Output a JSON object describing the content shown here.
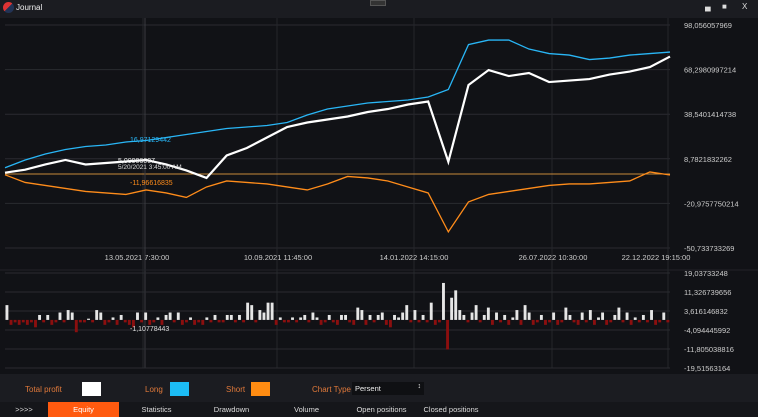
{
  "window": {
    "title": "Journal",
    "minimize": "▄",
    "maximize": "■",
    "close": "X"
  },
  "chart_data": [
    {
      "type": "line",
      "ylim": [
        -50.733733269,
        98.056057969
      ],
      "y_ticks": [
        "98,056057969",
        "68,2980997214",
        "38,5401414738",
        "8,7821832262",
        "-20,9757750214",
        "-50,733733269"
      ],
      "x_ticks": [
        "13.05.2021 7:30:00",
        "10.09.2021 11:45:00",
        "14.01.2022 14:15:00",
        "26.07.2022 10:30:00",
        "22.12.2022 19:15:00"
      ],
      "series": [
        {
          "name": "Total profit",
          "color": "#ffffff",
          "values": [
            -0.5,
            1.5,
            5,
            8,
            5,
            6,
            7,
            8,
            5,
            1,
            -4,
            11,
            16,
            23,
            30,
            33,
            35,
            37,
            40,
            42,
            45,
            47,
            6.8,
            58,
            68,
            64,
            66,
            60,
            61,
            62,
            65,
            67,
            70,
            77
          ]
        },
        {
          "name": "Long",
          "color": "#29b6f6",
          "values": [
            2.8,
            8,
            12,
            15,
            17,
            18,
            20,
            21,
            23,
            25,
            27,
            29,
            30,
            31,
            33,
            38,
            42,
            44,
            46,
            47,
            48,
            50,
            55,
            85,
            88,
            88,
            82,
            79,
            78,
            75,
            76,
            78,
            79,
            80
          ]
        },
        {
          "name": "Short",
          "color": "#ff8c1a",
          "values": [
            -1.9,
            -7,
            -9,
            -11,
            -13,
            -14,
            -15,
            -12,
            -14,
            -17,
            -10,
            -6,
            -7,
            -8,
            -10,
            -12,
            -8,
            -3,
            -4,
            -6,
            -10,
            -14,
            -40,
            -20,
            -15,
            -13,
            -11,
            -9,
            -8,
            -8,
            -7,
            -6,
            0,
            -2
          ]
        }
      ],
      "crosshair": {
        "long": "16,97129442",
        "total": "5,00906607",
        "date": "5/20/2021 3:45:00 AM",
        "short": "-11,96616835"
      }
    },
    {
      "type": "bar",
      "ylim": [
        -19.51563164,
        19.03733248
      ],
      "y_ticks": [
        "19,03733248",
        "11,326739656",
        "3,616146832",
        "-4,094445992",
        "-11,805038816",
        "-19,51563164"
      ],
      "crosshair_value": "-1,10778443",
      "values": [
        6,
        -2,
        -1,
        -2,
        -1,
        -2,
        -1,
        -3,
        2,
        -1,
        2,
        -2,
        -1,
        3,
        -1,
        4,
        3,
        -5,
        -1,
        -1,
        0.5,
        -1,
        4,
        3,
        -2,
        -1,
        1,
        -2,
        2,
        -1,
        -2,
        -3,
        3,
        -1,
        3,
        -2,
        -1,
        1,
        -2,
        2,
        3,
        -1,
        3,
        -2,
        -1,
        1,
        -2,
        -1,
        -2,
        1,
        -1,
        2,
        -1,
        -1,
        2,
        2,
        -1,
        2,
        -1,
        7,
        6,
        -1,
        4,
        3,
        7,
        7,
        -2,
        1,
        -1,
        -1,
        1,
        -1,
        1,
        2,
        -1,
        3,
        1,
        -2,
        -1,
        2,
        -1,
        -2,
        2,
        2,
        -1,
        -2,
        5,
        4,
        -2,
        2,
        -1,
        2,
        3,
        -2,
        -3,
        2,
        1,
        3,
        6,
        -1,
        4,
        -1,
        2,
        -1,
        7,
        -2,
        -1,
        15,
        -12,
        9,
        12,
        4,
        2,
        -1,
        3,
        6,
        -1,
        2,
        5,
        -2,
        3,
        -1,
        2,
        -2,
        1,
        4,
        -2,
        6,
        3,
        -2,
        -1,
        2,
        -2,
        -1,
        3,
        -2,
        -1,
        5,
        2,
        -1,
        -2,
        3,
        -1,
        4,
        -2,
        1,
        3,
        -2,
        -1,
        2,
        5,
        -1,
        3,
        -2,
        1,
        -1,
        2,
        -1,
        4,
        -2,
        -1,
        3,
        -1
      ],
      "colors": {
        "positive": "#e6e6e6",
        "negative": "#8b0f0f"
      }
    }
  ],
  "legend": {
    "total_profit": "Total profit",
    "total_color": "#ffffff",
    "long": "Long",
    "long_color": "#1cbcf4",
    "short": "Short",
    "short_color": "#ff8c12",
    "chart_type_label": "Chart Type",
    "chart_type_value": "Persent"
  },
  "tabs": [
    ">>>>",
    "Equity",
    "Statistics",
    "Drawdown",
    "Volume",
    "Open positions",
    "Closed positions"
  ],
  "active_tab": "Equity"
}
